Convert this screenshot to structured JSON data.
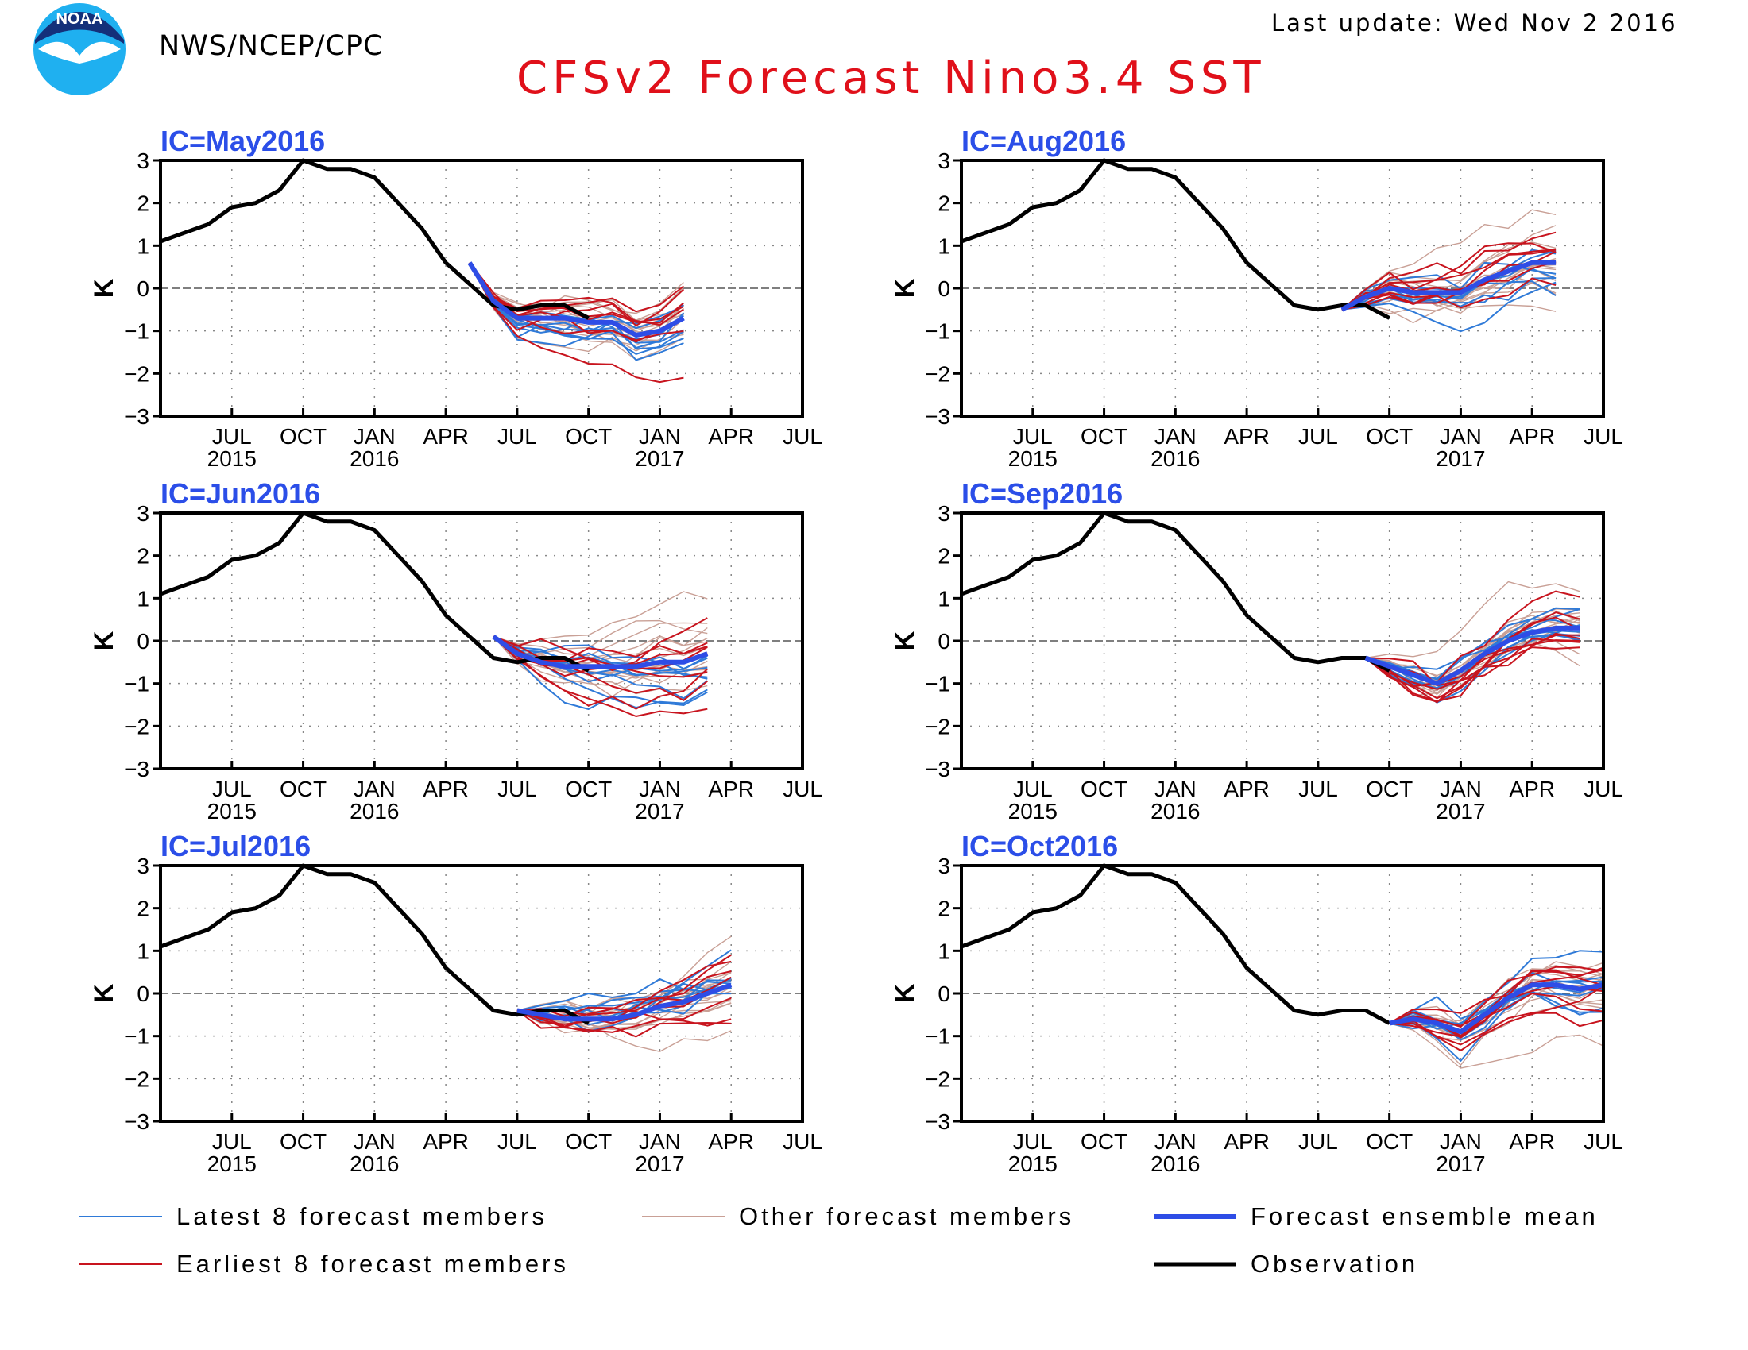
{
  "header": {
    "agency": "NWS/NCEP/CPC",
    "last_update": "Last update: Wed Nov 2 2016",
    "title": "CFSv2 Forecast Nino3.4 SST",
    "logo_text": "NOAA"
  },
  "colors": {
    "title": "#e0101a",
    "panel_title": "#2b4ee8",
    "observation": "#000000",
    "ensemble_mean": "#2e4de6",
    "latest_members": "#2f7ad8",
    "earliest_members": "#c8141e",
    "other_members": "#c9a096",
    "zero_line": "#555555",
    "logo_sky": "#1fb0f0",
    "logo_ring": "#14307a"
  },
  "legend": {
    "latest": "Latest 8 forecast members",
    "other": "Other forecast members",
    "mean": "Forecast ensemble mean",
    "earliest": "Earliest 8 forecast members",
    "obs": "Observation"
  },
  "chart_data": {
    "type": "line",
    "ylabel": "K",
    "ylim": [
      -3,
      3
    ],
    "yticks": [
      "3",
      "2",
      "1",
      "0",
      "−1",
      "−2",
      "−3"
    ],
    "x_month_labels": [
      "JUL",
      "OCT",
      "JAN",
      "APR",
      "JUL",
      "OCT",
      "JAN",
      "APR",
      "JUL"
    ],
    "x_year_labels": [
      {
        "under": 0,
        "text": "2015"
      },
      {
        "under": 2,
        "text": "2016"
      },
      {
        "under": 6,
        "text": "2017"
      }
    ],
    "x_range": [
      "2015-04",
      "2017-07"
    ],
    "observation": {
      "x": [
        "2015-04",
        "2015-05",
        "2015-06",
        "2015-07",
        "2015-08",
        "2015-09",
        "2015-10",
        "2015-11",
        "2015-12",
        "2016-01",
        "2016-02",
        "2016-03",
        "2016-04",
        "2016-05",
        "2016-06",
        "2016-07",
        "2016-08",
        "2016-09",
        "2016-10"
      ],
      "y": [
        1.1,
        1.3,
        1.5,
        1.9,
        2.0,
        2.3,
        3.0,
        2.8,
        2.8,
        2.6,
        2.0,
        1.4,
        0.6,
        0.1,
        -0.4,
        -0.5,
        -0.4,
        -0.4,
        -0.7
      ]
    },
    "panels": [
      {
        "title": "IC=May2016",
        "mean": {
          "x": [
            "2016-05",
            "2016-06",
            "2016-07",
            "2016-08",
            "2016-09",
            "2016-10",
            "2016-11",
            "2016-12",
            "2017-01",
            "2017-02"
          ],
          "y": [
            0.6,
            -0.3,
            -0.7,
            -0.7,
            -0.7,
            -0.8,
            -0.8,
            -1.1,
            -1.0,
            -0.7
          ]
        }
      },
      {
        "title": "IC=Aug2016",
        "mean": {
          "x": [
            "2016-08",
            "2016-09",
            "2016-10",
            "2016-11",
            "2016-12",
            "2017-01",
            "2017-02",
            "2017-03",
            "2017-04",
            "2017-05"
          ],
          "y": [
            -0.5,
            -0.2,
            0.0,
            -0.1,
            -0.1,
            -0.1,
            0.2,
            0.4,
            0.6,
            0.6
          ]
        }
      },
      {
        "title": "IC=Jun2016",
        "mean": {
          "x": [
            "2016-06",
            "2016-07",
            "2016-08",
            "2016-09",
            "2016-10",
            "2016-11",
            "2016-12",
            "2017-01",
            "2017-02",
            "2017-03"
          ],
          "y": [
            0.1,
            -0.3,
            -0.5,
            -0.6,
            -0.6,
            -0.6,
            -0.6,
            -0.5,
            -0.5,
            -0.3
          ]
        }
      },
      {
        "title": "IC=Sep2016",
        "mean": {
          "x": [
            "2016-09",
            "2016-10",
            "2016-11",
            "2016-12",
            "2017-01",
            "2017-02",
            "2017-03",
            "2017-04",
            "2017-05",
            "2017-06"
          ],
          "y": [
            -0.4,
            -0.6,
            -0.8,
            -1.0,
            -0.7,
            -0.3,
            0.0,
            0.2,
            0.3,
            0.3
          ]
        }
      },
      {
        "title": "IC=Jul2016",
        "mean": {
          "x": [
            "2016-07",
            "2016-08",
            "2016-09",
            "2016-10",
            "2016-11",
            "2016-12",
            "2017-01",
            "2017-02",
            "2017-03",
            "2017-04"
          ],
          "y": [
            -0.4,
            -0.5,
            -0.6,
            -0.6,
            -0.6,
            -0.5,
            -0.3,
            -0.2,
            0.0,
            0.2
          ]
        }
      },
      {
        "title": "IC=Oct2016",
        "mean": {
          "x": [
            "2016-10",
            "2016-11",
            "2016-12",
            "2017-01",
            "2017-02",
            "2017-03",
            "2017-04",
            "2017-05",
            "2017-06",
            "2017-07"
          ],
          "y": [
            -0.7,
            -0.6,
            -0.7,
            -0.9,
            -0.5,
            -0.1,
            0.2,
            0.2,
            0.1,
            0.2
          ]
        }
      }
    ]
  }
}
